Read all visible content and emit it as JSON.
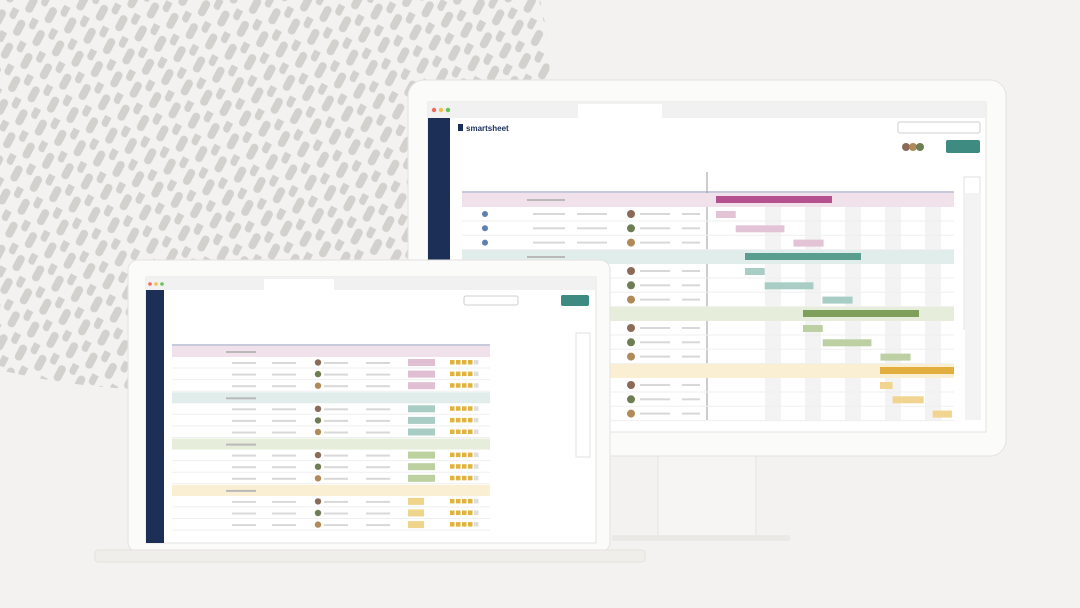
{
  "brand": "smartsheet"
}
